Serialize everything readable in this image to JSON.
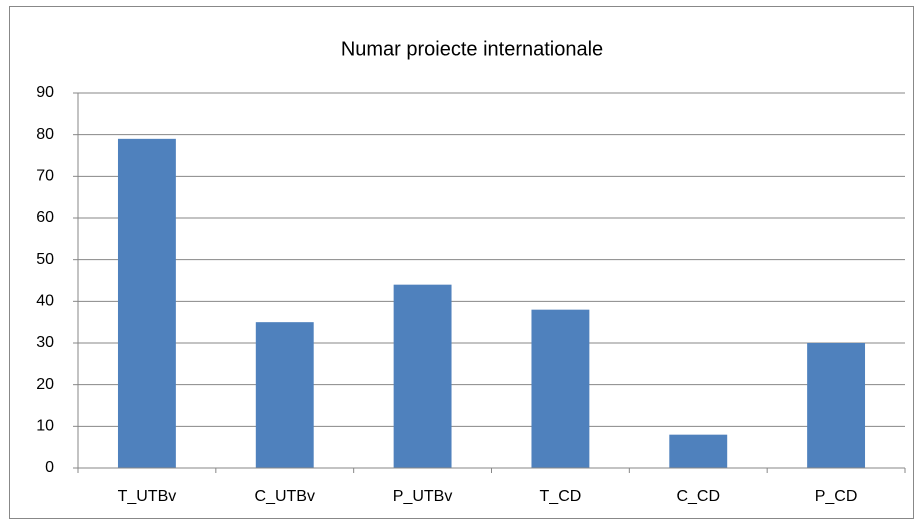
{
  "chart_data": {
    "type": "bar",
    "title": "Numar proiecte internationale",
    "categories": [
      "T_UTBv",
      "C_UTBv",
      "P_UTBv",
      "T_CD",
      "C_CD",
      "P_CD"
    ],
    "values": [
      79,
      35,
      44,
      38,
      8,
      30
    ],
    "color": "#4f81bd",
    "ylim": [
      0,
      90
    ],
    "yticks": [
      0,
      10,
      20,
      30,
      40,
      50,
      60,
      70,
      80,
      90
    ],
    "grid": true
  }
}
